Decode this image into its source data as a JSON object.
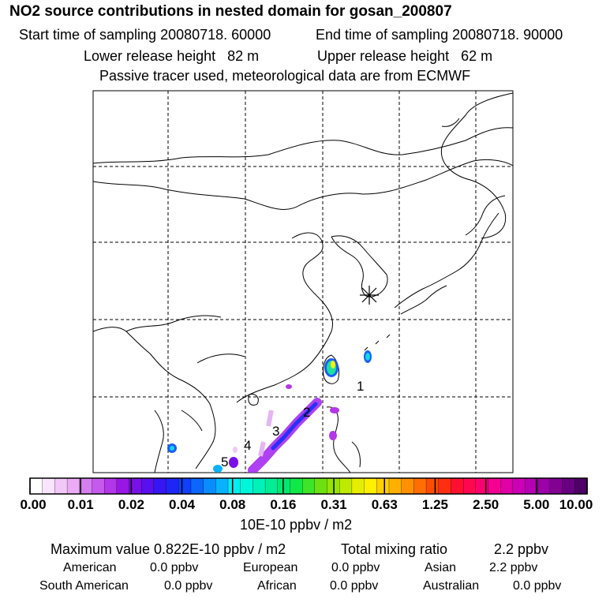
{
  "header": {
    "title": "NO2 source contributions in nested domain for gosan_200807",
    "start_time": "Start time of sampling 20080718. 60000",
    "end_time": "End time of sampling 20080718. 90000",
    "lower_height": "Lower release height   82 m",
    "upper_height": "Upper release height   62 m",
    "note": "Passive tracer used, meteorological data are from ECMWF"
  },
  "map": {
    "region_labels": [
      "1",
      "2",
      "3",
      "4",
      "5"
    ],
    "receptor_marker": "receptor-star"
  },
  "colorbar": {
    "ticks": [
      "0.00",
      "0.01",
      "0.02",
      "0.04",
      "0.08",
      "0.16",
      "0.31",
      "0.63",
      "1.25",
      "2.50",
      "5.00",
      "10.00"
    ],
    "unit": "10E-10 ppbv / m2",
    "colors": [
      "#ffffff",
      "#f8e4fb",
      "#f2c8f8",
      "#ebabf5",
      "#d67ef0",
      "#c65aec",
      "#b336e8",
      "#9a16e4",
      "#7a10e8",
      "#5a10ee",
      "#3616f2",
      "#1e26f6",
      "#1040fa",
      "#0c66fc",
      "#0a8cfc",
      "#08b2fc",
      "#02f0f0",
      "#00f6d8",
      "#00f2b8",
      "#00ee96",
      "#00e870",
      "#10e848",
      "#3ee428",
      "#6ce010",
      "#96e400",
      "#beea00",
      "#e6ee00",
      "#fff000",
      "#ffd000",
      "#ffb000",
      "#ff9000",
      "#ff6e00",
      "#ff4c00",
      "#ff2e10",
      "#ff1030",
      "#ff0850",
      "#ff0070",
      "#f40092",
      "#e000a8",
      "#cc00b4",
      "#b600b4",
      "#9c00a8",
      "#820094",
      "#680080",
      "#4e0066"
    ]
  },
  "stats": {
    "max_value": "Maximum value  0.822E-10 ppbv / m2",
    "total_label": "Total mixing ratio",
    "total_value": "2.2 ppbv",
    "american_label": "American",
    "american_value": "0.0 ppbv",
    "european_label": "European",
    "european_value": "0.0 ppbv",
    "asian_label": "Asian",
    "asian_value": "2.2 ppbv",
    "south_american_label": "South American",
    "south_american_value": "0.0 ppbv",
    "african_label": "African",
    "african_value": "0.0 ppbv",
    "australian_label": "Australian",
    "australian_value": "0.0 ppbv"
  }
}
